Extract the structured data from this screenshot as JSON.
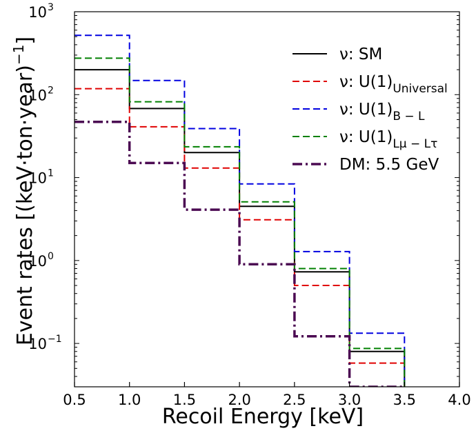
{
  "chart_data": {
    "type": "line",
    "subtype": "step-histogram",
    "xlabel": "Recoil Energy [keV]",
    "ylabel": "Event rates [(keV·ton·year)",
    "ylabel_exponent": "−1",
    "ylabel_close": "]",
    "xscale": "linear",
    "yscale": "log",
    "xlim": [
      0.5,
      4.0
    ],
    "ylim": [
      0.03,
      1000
    ],
    "xticks": [
      0.5,
      1.0,
      1.5,
      2.0,
      2.5,
      3.0,
      3.5,
      4.0
    ],
    "xtick_labels": [
      "0.5",
      "1.0",
      "1.5",
      "2.0",
      "2.5",
      "3.0",
      "3.5",
      "4.0"
    ],
    "yticks": [
      0.1,
      1,
      10,
      100,
      1000
    ],
    "ytick_labels": [
      {
        "base": "10",
        "exp": "−1"
      },
      {
        "base": "10",
        "exp": "0"
      },
      {
        "base": "10",
        "exp": "1"
      },
      {
        "base": "10",
        "exp": "2"
      },
      {
        "base": "10",
        "exp": "3"
      }
    ],
    "bin_edges": [
      0.5,
      1.0,
      1.5,
      2.0,
      2.5,
      3.0,
      3.5
    ],
    "legend_position": "upper-right",
    "grid": false,
    "series": [
      {
        "id": "sm",
        "values": [
          200,
          68,
          20,
          4.5,
          0.73,
          0.08
        ],
        "color": "#000000",
        "style": "solid",
        "width": 2,
        "legend": {
          "prefix": "ν: SM",
          "sub": ""
        }
      },
      {
        "id": "universal",
        "values": [
          118,
          41,
          13,
          3.1,
          0.5,
          0.058
        ],
        "color": "#e00000",
        "style": "dashed",
        "width": 2,
        "legend": {
          "prefix": "ν: U(1)",
          "sub": "Universal"
        }
      },
      {
        "id": "bl",
        "values": [
          520,
          148,
          39,
          8.4,
          1.28,
          0.133
        ],
        "color": "#0000e0",
        "style": "dashed",
        "width": 2,
        "legend": {
          "prefix": "ν: U(1)",
          "sub": "B − L"
        }
      },
      {
        "id": "lmu",
        "values": [
          275,
          82,
          23.5,
          5.1,
          0.8,
          0.087
        ],
        "color": "#008000",
        "style": "dashed",
        "width": 2,
        "legend": {
          "prefix": "ν: U(1)",
          "sub": "Lμ − Lτ"
        }
      },
      {
        "id": "dm",
        "values": [
          47,
          15,
          4.1,
          0.9,
          0.122,
          0.03
        ],
        "color": "#4b0a52",
        "style": "dashdot",
        "width": 3.5,
        "legend": {
          "prefix": "DM: 5.5 GeV",
          "sub": ""
        }
      }
    ]
  }
}
